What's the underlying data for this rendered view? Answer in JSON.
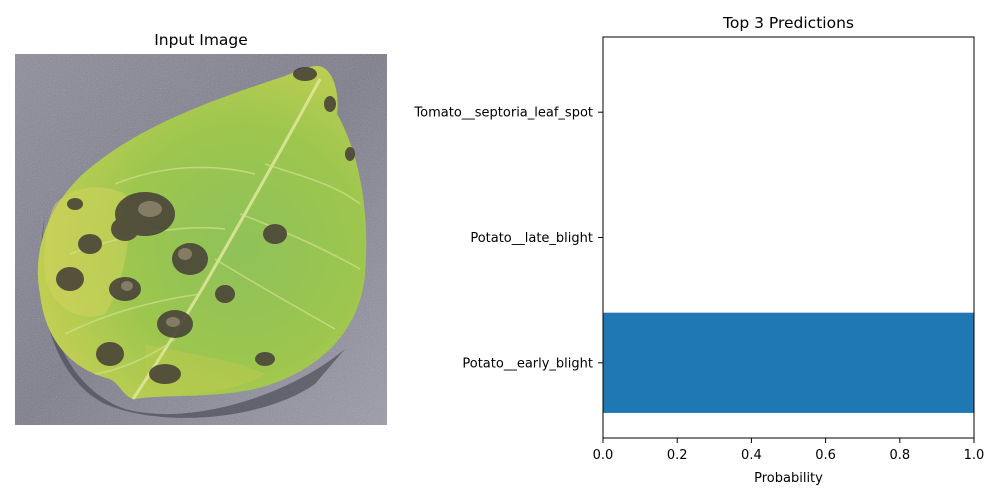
{
  "input_panel": {
    "title": "Input Image",
    "image_icon": "diseased-potato-leaf-photo"
  },
  "chart_data": {
    "type": "bar",
    "orientation": "horizontal",
    "title": "Top 3 Predictions",
    "xlabel": "Probability",
    "ylabel": "",
    "categories": [
      "Potato__early_blight",
      "Potato__late_blight",
      "Tomato__septoria_leaf_spot"
    ],
    "values": [
      1.0,
      0.0,
      0.0
    ],
    "xlim": [
      0.0,
      1.0
    ],
    "xticks": [
      "0.0",
      "0.2",
      "0.4",
      "0.6",
      "0.8",
      "1.0"
    ],
    "grid": false,
    "legend": "none",
    "bar_color": "#1f77b4"
  }
}
